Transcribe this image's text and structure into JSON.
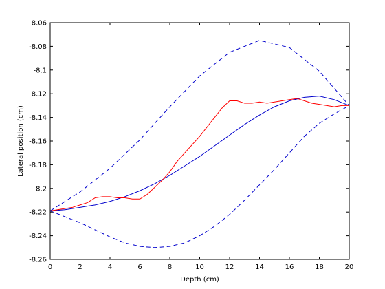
{
  "chart_data": {
    "type": "line",
    "title": "",
    "xlabel": "Depth (cm)",
    "ylabel": "Lateral position (cm)",
    "xlim": [
      0,
      20
    ],
    "ylim": [
      -8.26,
      -8.06
    ],
    "xticks": [
      0,
      2,
      4,
      6,
      8,
      10,
      12,
      14,
      16,
      18,
      20
    ],
    "yticks": [
      -8.26,
      -8.24,
      -8.22,
      -8.2,
      -8.18,
      -8.16,
      -8.14,
      -8.12,
      -8.1,
      -8.08,
      -8.06
    ],
    "ytick_labels": [
      "-8.26",
      "-8.24",
      "-8.22",
      "-8.2",
      "-8.18",
      "-8.16",
      "-8.14",
      "-8.12",
      "-8.1",
      "-8.08",
      "-8.06"
    ],
    "grid": false,
    "legend": false,
    "series": [
      {
        "color": "#0000cc",
        "style": "dashed",
        "x": [
          0,
          2,
          4,
          6,
          8,
          10,
          12,
          14,
          16,
          18,
          20
        ],
        "y": [
          -8.219,
          -8.203,
          -8.183,
          -8.159,
          -8.131,
          -8.105,
          -8.085,
          -8.075,
          -8.081,
          -8.101,
          -8.13
        ]
      },
      {
        "color": "#0000cc",
        "style": "dashed",
        "x": [
          0,
          1,
          2,
          3,
          4,
          5,
          6,
          7,
          8,
          9,
          10,
          11,
          12,
          13,
          14,
          15,
          16,
          17,
          18,
          19,
          20
        ],
        "y": [
          -8.219,
          -8.224,
          -8.229,
          -8.235,
          -8.241,
          -8.246,
          -8.249,
          -8.25,
          -8.249,
          -8.246,
          -8.24,
          -8.232,
          -8.222,
          -8.21,
          -8.197,
          -8.184,
          -8.17,
          -8.156,
          -8.145,
          -8.137,
          -8.13
        ]
      },
      {
        "color": "#0000cc",
        "style": "solid",
        "x": [
          0,
          1,
          2,
          3,
          4,
          5,
          6,
          7,
          8,
          9,
          10,
          11,
          12,
          13,
          14,
          15,
          16,
          17,
          18,
          19,
          20
        ],
        "y": [
          -8.219,
          -8.218,
          -8.216,
          -8.214,
          -8.211,
          -8.207,
          -8.202,
          -8.196,
          -8.189,
          -8.181,
          -8.173,
          -8.164,
          -8.155,
          -8.146,
          -8.138,
          -8.131,
          -8.126,
          -8.123,
          -8.122,
          -8.125,
          -8.13
        ]
      },
      {
        "color": "#ff0000",
        "style": "solid",
        "x": [
          0,
          0.5,
          1,
          1.5,
          2,
          2.5,
          3,
          3.5,
          4,
          4.5,
          5,
          5.5,
          6,
          6.5,
          7,
          7.5,
          8,
          8.5,
          9,
          9.5,
          10,
          10.5,
          11,
          11.5,
          12,
          12.5,
          13,
          13.5,
          14,
          14.5,
          15,
          15.5,
          16,
          16.5,
          17,
          17.5,
          18,
          18.5,
          19,
          19.5,
          20
        ],
        "y": [
          -8.219,
          -8.218,
          -8.217,
          -8.216,
          -8.214,
          -8.212,
          -8.208,
          -8.207,
          -8.207,
          -8.208,
          -8.208,
          -8.209,
          -8.209,
          -8.205,
          -8.199,
          -8.193,
          -8.186,
          -8.177,
          -8.17,
          -8.163,
          -8.156,
          -8.148,
          -8.14,
          -8.132,
          -8.126,
          -8.126,
          -8.128,
          -8.128,
          -8.127,
          -8.128,
          -8.127,
          -8.126,
          -8.125,
          -8.124,
          -8.126,
          -8.128,
          -8.129,
          -8.13,
          -8.131,
          -8.13,
          -8.13
        ]
      }
    ]
  }
}
